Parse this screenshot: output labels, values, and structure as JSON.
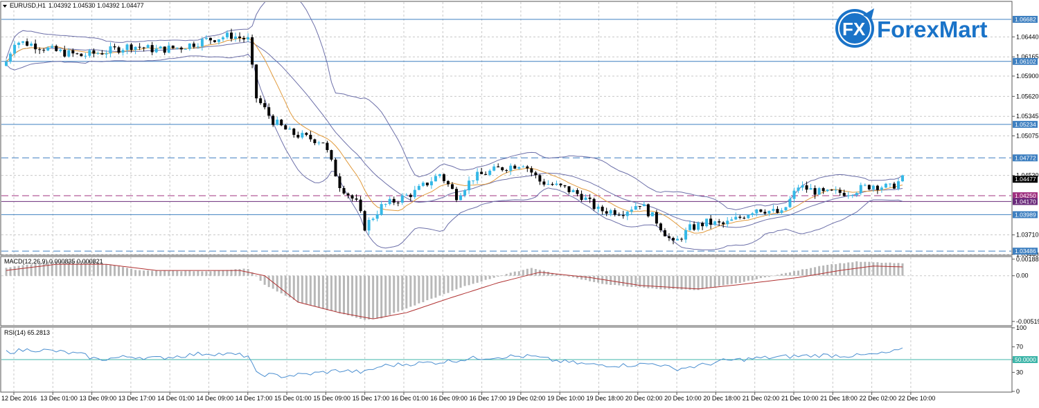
{
  "header": {
    "symbol": "EURUSD,H1",
    "ohlc": "1.04392 1.04530 1.04392 1.04477",
    "menu_icon": "triangle-down-icon"
  },
  "logo": {
    "fx": "FX",
    "word": "ForexMart"
  },
  "colors": {
    "bull": "#35b8e6",
    "bear": "#000000",
    "bands": "#6b6ea8",
    "ma": "#e19a3c",
    "hline": "#3d7fc0",
    "magenta": "#a0307f",
    "purple": "#6a2a7a",
    "macd_hist": "#b8b8b8",
    "macd_signal": "#b03030",
    "rsi": "#4a8ed0",
    "rsi_level": "#3cb4a8"
  },
  "chart_data": [
    {
      "type": "candlestick",
      "name": "price",
      "ylim": [
        1.0344,
        1.0692
      ],
      "y_ticks": [
        "1.06440",
        "1.06165",
        "1.05900",
        "1.05620",
        "1.05345",
        "1.05075",
        "1.04530",
        "1.03710",
        "1.03440"
      ],
      "current_price": "1.04477",
      "levels": [
        {
          "value": 1.06682,
          "label": "1.06682",
          "style": "solid",
          "color": "hline"
        },
        {
          "value": 1.06102,
          "label": "1.06102",
          "style": "solid",
          "color": "hline"
        },
        {
          "value": 1.05234,
          "label": "1.05234",
          "style": "solid",
          "color": "hline"
        },
        {
          "value": 1.04772,
          "label": "1.04772",
          "style": "dashed",
          "color": "hline"
        },
        {
          "value": 1.0425,
          "label": "1.04250",
          "style": "dashed",
          "color": "magenta"
        },
        {
          "value": 1.0417,
          "label": "1.04170",
          "style": "solid",
          "color": "purple"
        },
        {
          "value": 1.03989,
          "label": "1.03989",
          "style": "solid",
          "color": "hline"
        },
        {
          "value": 1.03486,
          "label": "1.03486",
          "style": "dashed",
          "color": "hline"
        }
      ],
      "x_labels": [
        "12 Dec 2016",
        "13 Dec 01:00",
        "13 Dec 09:00",
        "13 Dec 17:00",
        "14 Dec 01:00",
        "14 Dec 09:00",
        "14 Dec 17:00",
        "15 Dec 01:00",
        "15 Dec 09:00",
        "15 Dec 17:00",
        "16 Dec 01:00",
        "16 Dec 09:00",
        "16 Dec 17:00",
        "19 Dec 02:00",
        "19 Dec 10:00",
        "19 Dec 18:00",
        "20 Dec 02:00",
        "20 Dec 10:00",
        "20 Dec 18:00",
        "21 Dec 02:00",
        "21 Dec 10:00",
        "21 Dec 18:00",
        "22 Dec 02:00",
        "22 Dec 10:00"
      ],
      "close_anchors": [
        [
          0,
          1.061
        ],
        [
          2,
          1.0638
        ],
        [
          6,
          1.0634
        ],
        [
          12,
          1.0624
        ],
        [
          18,
          1.0618
        ],
        [
          24,
          1.0624
        ],
        [
          30,
          1.0632
        ],
        [
          36,
          1.0626
        ],
        [
          42,
          1.063
        ],
        [
          48,
          1.064
        ],
        [
          54,
          1.0646
        ],
        [
          58,
          1.064
        ],
        [
          60,
          1.056
        ],
        [
          64,
          1.0528
        ],
        [
          68,
          1.0512
        ],
        [
          72,
          1.0505
        ],
        [
          76,
          1.05
        ],
        [
          80,
          1.044
        ],
        [
          84,
          1.0415
        ],
        [
          86,
          1.0382
        ],
        [
          90,
          1.041
        ],
        [
          94,
          1.042
        ],
        [
          98,
          1.043
        ],
        [
          104,
          1.0455
        ],
        [
          108,
          1.0425
        ],
        [
          112,
          1.045
        ],
        [
          118,
          1.0462
        ],
        [
          124,
          1.047
        ],
        [
          128,
          1.0445
        ],
        [
          134,
          1.0435
        ],
        [
          138,
          1.0425
        ],
        [
          142,
          1.0405
        ],
        [
          148,
          1.0403
        ],
        [
          152,
          1.0415
        ],
        [
          156,
          1.039
        ],
        [
          160,
          1.0358
        ],
        [
          164,
          1.038
        ],
        [
          168,
          1.0388
        ],
        [
          172,
          1.0385
        ],
        [
          176,
          1.0395
        ],
        [
          180,
          1.0408
        ],
        [
          186,
          1.04
        ],
        [
          190,
          1.0438
        ],
        [
          196,
          1.0428
        ],
        [
          202,
          1.043
        ],
        [
          208,
          1.044
        ],
        [
          212,
          1.0436
        ],
        [
          215,
          1.0448
        ]
      ],
      "candle_count": 216
    },
    {
      "type": "bar",
      "name": "MACD(12,26,9) 0.000835 0.000821",
      "ylim": [
        -0.0056,
        0.0021
      ],
      "y_ticks": [
        "0.001882",
        "0.00",
        "-0.005193"
      ],
      "hist_anchors": [
        [
          0,
          0.0009
        ],
        [
          10,
          0.0016
        ],
        [
          20,
          0.0017
        ],
        [
          32,
          0.0006
        ],
        [
          48,
          0.0005
        ],
        [
          58,
          0.0008
        ],
        [
          62,
          -0.001
        ],
        [
          70,
          -0.003
        ],
        [
          78,
          -0.004
        ],
        [
          86,
          -0.005
        ],
        [
          90,
          -0.0048
        ],
        [
          100,
          -0.003
        ],
        [
          110,
          -0.0012
        ],
        [
          120,
          0.0002
        ],
        [
          126,
          0.0009
        ],
        [
          134,
          0.0
        ],
        [
          144,
          -0.001
        ],
        [
          156,
          -0.0015
        ],
        [
          166,
          -0.0016
        ],
        [
          176,
          -0.0008
        ],
        [
          186,
          0.0002
        ],
        [
          196,
          0.0012
        ],
        [
          204,
          0.0016
        ],
        [
          215,
          0.0014
        ]
      ],
      "signal_anchors": [
        [
          0,
          0.0006
        ],
        [
          12,
          0.0013
        ],
        [
          24,
          0.0013
        ],
        [
          36,
          0.0006
        ],
        [
          56,
          0.0006
        ],
        [
          62,
          0.0
        ],
        [
          70,
          -0.003
        ],
        [
          80,
          -0.0042
        ],
        [
          88,
          -0.0049
        ],
        [
          96,
          -0.0042
        ],
        [
          106,
          -0.0026
        ],
        [
          118,
          -0.0008
        ],
        [
          128,
          0.0004
        ],
        [
          140,
          -0.0002
        ],
        [
          152,
          -0.0011
        ],
        [
          166,
          -0.0015
        ],
        [
          176,
          -0.001
        ],
        [
          190,
          -0.0002
        ],
        [
          200,
          0.0006
        ],
        [
          208,
          0.0011
        ],
        [
          215,
          0.001
        ]
      ]
    },
    {
      "type": "line",
      "name": "RSI(14) 65.2813",
      "ylim": [
        0,
        100
      ],
      "y_ticks": [
        "100",
        "70",
        "50.0000",
        "30",
        "0"
      ],
      "level": 50,
      "rsi_anchors": [
        [
          0,
          62
        ],
        [
          6,
          66
        ],
        [
          12,
          63
        ],
        [
          18,
          58
        ],
        [
          22,
          50
        ],
        [
          30,
          55
        ],
        [
          36,
          52
        ],
        [
          42,
          56
        ],
        [
          48,
          60
        ],
        [
          54,
          58
        ],
        [
          58,
          56
        ],
        [
          60,
          28
        ],
        [
          66,
          24
        ],
        [
          72,
          27
        ],
        [
          80,
          33
        ],
        [
          86,
          30
        ],
        [
          90,
          40
        ],
        [
          98,
          44
        ],
        [
          104,
          46
        ],
        [
          112,
          52
        ],
        [
          120,
          55
        ],
        [
          126,
          55
        ],
        [
          132,
          48
        ],
        [
          140,
          42
        ],
        [
          148,
          41
        ],
        [
          156,
          44
        ],
        [
          160,
          35
        ],
        [
          166,
          40
        ],
        [
          172,
          48
        ],
        [
          180,
          52
        ],
        [
          188,
          55
        ],
        [
          196,
          57
        ],
        [
          204,
          56
        ],
        [
          210,
          59
        ],
        [
          215,
          65
        ]
      ]
    }
  ]
}
